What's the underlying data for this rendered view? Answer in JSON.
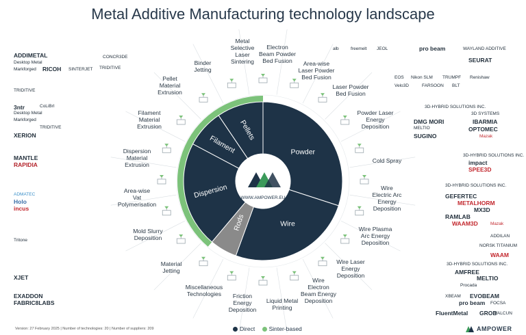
{
  "title": "Metal Additive Manufacturing technology landscape",
  "center_url": "WWW.AMPOWER.EU",
  "version_text": "Version: 27 February 2025 | Number of technologies: 20 | Number of suppliers: 209",
  "legend": [
    {
      "label": "Direct",
      "color": "#1e3347"
    },
    {
      "label": "Sinter-based",
      "color": "#7cc27a"
    }
  ],
  "brand": "AMPOWER",
  "colors": {
    "direct": "#1e3347",
    "sinter": "#7cc27a",
    "rods": "#8a8a8a",
    "accent": "#3b9a5a"
  },
  "segments": [
    {
      "label": "Powder"
    },
    {
      "label": "Wire"
    },
    {
      "label": "Rods"
    },
    {
      "label": "Dispersion"
    },
    {
      "label": "Filament"
    },
    {
      "label": "Pellets"
    }
  ],
  "technologies": [
    {
      "label": "Electron Beam Powder Bed Fusion"
    },
    {
      "label": "Area-wise Laser Powder Bed Fusion"
    },
    {
      "label": "Laser Powder Bed Fusion"
    },
    {
      "label": "Powder Laser Energy Deposition"
    },
    {
      "label": "Cold Spray"
    },
    {
      "label": "Wire Electric Arc Energy Deposition"
    },
    {
      "label": "Wire Plasma Arc Energy Deposition"
    },
    {
      "label": "Wire Laser Energy Deposition"
    },
    {
      "label": "Wire Electron Beam Energy Deposition"
    },
    {
      "label": "Liquid Metal Printing"
    },
    {
      "label": "Friction Energy Deposition"
    },
    {
      "label": "Miscellaneous Technologies"
    },
    {
      "label": "Material Jetting"
    },
    {
      "label": "Mold Slurry Deposition"
    },
    {
      "label": "Area-wise Vat Polymerisation"
    },
    {
      "label": "Dispersion Material Extrusion"
    },
    {
      "label": "Filament Material Extrusion"
    },
    {
      "label": "Pellet Material Extrusion"
    },
    {
      "label": "Binder Jetting"
    },
    {
      "label": "Metal Selective Laser Sintering"
    }
  ],
  "logos": {
    "binder_jetting": [
      "ADDIMETAL",
      "Desktop Metal",
      "RICOH",
      "SINTERJET",
      "Markforged",
      "TRIDITIVE",
      "CONCR3DE"
    ],
    "pellet": [
      "TRIDITIVE"
    ],
    "filament": [
      "3ntr",
      "CoLiBrI",
      "Desktop Metal",
      "Markforged",
      "TRIDITIVE",
      "XERION"
    ],
    "dispersion": [
      "MANTLE",
      "RAPIDIA"
    ],
    "vat": [
      "ADMATEC",
      "Holo",
      "incus"
    ],
    "mold_slurry": [
      "Tritone"
    ],
    "material_jetting": [
      "XJET"
    ],
    "misc": [
      "EXADDON",
      "FABRIC8LABS"
    ],
    "ebpbf": [
      "alb",
      "freemelt",
      "JEOL",
      "pro beam",
      "WAYLAND ADDITIVE"
    ],
    "area_lpbf": [
      "SEURAT"
    ],
    "lpbf": [
      "EOS",
      "Nikon SLM",
      "TRUMPF",
      "Renishaw",
      "Velo3D",
      "FARSOON",
      "BLT"
    ],
    "ped": [
      "3D-HYBRID SOLUTIONS INC.",
      "3D SYSTEMS",
      "DMG MORI",
      "IBARMIA",
      "OPTOMEC",
      "MELTIO",
      "SUGINO",
      "Mazak"
    ],
    "cold_spray": [
      "3D-HYBRID SOLUTIONS INC.",
      "impact",
      "SPEE3D"
    ],
    "waaam": [
      "3D-HYBRID SOLUTIONS INC.",
      "GEFERTEC",
      "METALHORM",
      "MX3D",
      "RAMLAB",
      "WAAM3D",
      "Mazak"
    ],
    "plasma": [
      "ADDILAN",
      "NORSK TITANIUM",
      "WAAM"
    ],
    "wire_laser": [
      "3D-HYBRID SOLUTIONS INC.",
      "AMFREE",
      "MELTIO",
      "Procada"
    ],
    "wire_eb": [
      "XBEAM",
      "EVOBEAM",
      "pro beam",
      "FOCSA"
    ],
    "liquid": [
      "FluentMetal",
      "GROB",
      "VALCUN"
    ]
  }
}
